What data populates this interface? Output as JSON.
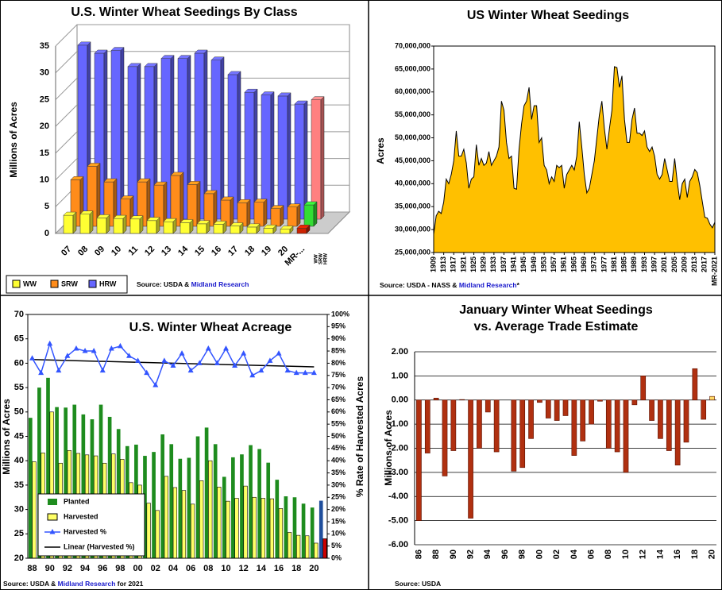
{
  "chart_data": [
    {
      "type": "bar3d",
      "title": "U.S. Winter Wheat Seedings By Class",
      "y_label": "Millions of Acres",
      "source": [
        "Source: USDA & ",
        "Midland Research"
      ],
      "categories": [
        "07",
        "08",
        "09",
        "10",
        "11",
        "12",
        "13",
        "14",
        "15",
        "16",
        "17",
        "18",
        "19",
        "20",
        "MR-..."
      ],
      "series": [
        {
          "name": "WW",
          "color": "#ffff33",
          "highlight_color": "#cc2200",
          "values": [
            3.4,
            3.6,
            2.9,
            2.8,
            2.7,
            2.4,
            2.2,
            2.0,
            1.8,
            1.7,
            1.4,
            1.2,
            1.0,
            0.8,
            1.0
          ]
        },
        {
          "name": "SRW",
          "color": "#ff8c1a",
          "highlight_color": "#33dd33",
          "values": [
            8.7,
            11.2,
            8.3,
            5.1,
            8.3,
            7.7,
            9.5,
            7.8,
            6.1,
            4.9,
            4.4,
            4.5,
            3.3,
            3.6,
            4.0
          ]
        },
        {
          "name": "HRW",
          "color": "#6666ff",
          "highlight_color": "#ff8080",
          "values": [
            32.5,
            31,
            31.5,
            28.5,
            28.5,
            30,
            30,
            31,
            29.7,
            27,
            23.7,
            23.2,
            23,
            21.5,
            22.3
          ]
        }
      ],
      "ylim": [
        0,
        35
      ],
      "yticks": [
        0,
        5,
        10,
        15,
        20,
        25,
        30,
        35
      ],
      "grid": true
    },
    {
      "type": "area",
      "title": "US Winter Wheat Seedings",
      "y_label": "Acres",
      "source": [
        "Source: USDA - NASS & ",
        "Midland Research",
        "*"
      ],
      "x_start": 1909,
      "color": "#ffc000",
      "values": [
        29,
        33,
        34,
        33.5,
        36,
        41,
        40,
        42,
        45,
        51.5,
        46,
        46,
        47.5,
        44.5,
        39,
        41,
        41.5,
        48.5,
        44,
        45.5,
        44,
        44.5,
        47,
        44,
        45,
        46,
        48,
        58,
        56,
        49,
        45.5,
        46,
        39,
        38.8,
        47.5,
        53,
        57,
        58,
        61,
        54,
        57,
        57,
        49,
        50,
        44,
        43,
        40,
        41.5,
        40.5,
        44,
        43.5,
        44,
        39,
        42,
        43,
        44,
        43,
        46,
        53.5,
        48,
        42,
        38,
        39,
        42,
        45,
        50,
        55,
        58,
        52,
        47.5,
        52,
        56,
        65.5,
        65.3,
        61,
        63.5,
        54,
        49,
        49,
        54,
        56.5,
        51,
        51,
        50.5,
        51.5,
        48,
        47,
        48,
        46,
        42,
        41,
        42,
        45.5,
        43,
        40.5,
        40.5,
        45.5,
        40.5,
        36.5,
        40,
        41,
        37,
        40.5,
        41.5,
        43.1,
        42.4,
        39.6,
        36.1,
        32.7,
        32.5,
        31.2,
        30.4,
        31.6
      ],
      "value_scale": 1000000,
      "xlim": [
        1909,
        2021
      ],
      "xticks": [
        1909,
        1913,
        1917,
        1921,
        1925,
        1929,
        1933,
        1937,
        1941,
        1945,
        1949,
        1953,
        1957,
        1961,
        1965,
        1969,
        1973,
        1977,
        1981,
        1985,
        1989,
        1993,
        1997,
        2001,
        2005,
        2009,
        2013,
        2017,
        {
          "value": 2021,
          "label": "MR-2021"
        }
      ],
      "ylim": [
        25000000,
        70000000
      ],
      "yticks": [
        {
          "value": 25000000,
          "label": "25,000,000"
        },
        {
          "value": 30000000,
          "label": "30,000,000"
        },
        {
          "value": 35000000,
          "label": "35,000,000"
        },
        {
          "value": 40000000,
          "label": "40,000,000"
        },
        {
          "value": 45000000,
          "label": "45,000,000"
        },
        {
          "value": 50000000,
          "label": "50,000,000"
        },
        {
          "value": 55000000,
          "label": "55,000,000"
        },
        {
          "value": 60000000,
          "label": "60,000,000"
        },
        {
          "value": 65000000,
          "label": "65,000,000"
        },
        {
          "value": 70000000,
          "label": "70,000,000"
        }
      ]
    },
    {
      "type": "combo",
      "title": "U.S. Winter Wheat Acreage",
      "y_label": "Millions of Acres",
      "y2_label": "% Rate of Harvested Acres",
      "source": [
        "Source: USDA & ",
        "Midland Research",
        " for 2021"
      ],
      "categories": [
        "88",
        null,
        "90",
        null,
        "92",
        null,
        "94",
        null,
        "96",
        null,
        "98",
        null,
        "00",
        null,
        "02",
        null,
        "04",
        null,
        "06",
        null,
        "08",
        null,
        "10",
        null,
        "12",
        null,
        "14",
        null,
        "16",
        null,
        "18",
        null,
        "20",
        null
      ],
      "series": [
        {
          "name": "Planted",
          "color": "#1e8c1e",
          "highlight_color": "#1f4e9c",
          "values": [
            48.8,
            55,
            57,
            51,
            50.9,
            51.5,
            49.5,
            48.5,
            51.5,
            49,
            46.5,
            43,
            43.3,
            41,
            41.8,
            45.4,
            43.4,
            40.4,
            40.6,
            45,
            46.8,
            43.4,
            36.7,
            40.7,
            41.3,
            43.2,
            42.4,
            39.6,
            36.1,
            32.7,
            32.5,
            31.2,
            30.4,
            31.8
          ]
        },
        {
          "name": "Harvested",
          "color": "#ffff66",
          "highlight_color": "#cc0000",
          "values": [
            39.8,
            41.6,
            50,
            39.5,
            42.1,
            41.5,
            41.2,
            41,
            39.5,
            41.4,
            40.3,
            35.5,
            35,
            31.3,
            29.8,
            36.8,
            34.5,
            33.9,
            31.1,
            35.9,
            40,
            34.6,
            31.7,
            32.3,
            34.8,
            32.5,
            32.3,
            32.2,
            30.2,
            25.3,
            24.7,
            24.6,
            23.1,
            24
          ]
        },
        {
          "name": "Harvested %",
          "color": "#3355ff",
          "axis": "y2",
          "values": [
            82,
            76,
            88,
            77,
            83,
            86,
            85,
            85,
            77,
            86,
            87,
            83,
            81,
            76,
            71,
            81,
            79,
            84,
            77,
            80,
            86,
            80,
            86,
            79,
            84,
            75,
            77,
            81,
            84,
            77,
            76,
            76,
            76,
            null
          ]
        }
      ],
      "trend": {
        "name": "Linear (Harvested %)",
        "color": "#000000",
        "axis": "y2",
        "start": 81.5,
        "end": 78.5
      },
      "ylim": [
        20,
        70
      ],
      "yticks": [
        20,
        25,
        30,
        35,
        40,
        45,
        50,
        55,
        60,
        65,
        70
      ],
      "y2lim": [
        0,
        100
      ],
      "y2ticks": [
        {
          "value": 0,
          "label": "0%"
        },
        {
          "value": 5,
          "label": "5%"
        },
        {
          "value": 10,
          "label": "10%"
        },
        {
          "value": 15,
          "label": "15%"
        },
        {
          "value": 20,
          "label": "20%"
        },
        {
          "value": 25,
          "label": "25%"
        },
        {
          "value": 30,
          "label": "30%"
        },
        {
          "value": 35,
          "label": "35%"
        },
        {
          "value": 40,
          "label": "40%"
        },
        {
          "value": 45,
          "label": "45%"
        },
        {
          "value": 50,
          "label": "50%"
        },
        {
          "value": 55,
          "label": "55%"
        },
        {
          "value": 60,
          "label": "60%"
        },
        {
          "value": 65,
          "label": "65%"
        },
        {
          "value": 70,
          "label": "70%"
        },
        {
          "value": 75,
          "label": "75%"
        },
        {
          "value": 80,
          "label": "80%"
        },
        {
          "value": 85,
          "label": "85%"
        },
        {
          "value": 90,
          "label": "90%"
        },
        {
          "value": 95,
          "label": "95%"
        },
        {
          "value": 100,
          "label": "100%"
        }
      ]
    },
    {
      "type": "bar",
      "title": [
        "January Winter Wheat Seedings",
        "vs. Average Trade Estimate"
      ],
      "y_label": "Millions of Acres",
      "source": [
        "Source: USDA"
      ],
      "categories": [
        "86",
        null,
        "88",
        null,
        "90",
        null,
        "92",
        null,
        "94",
        null,
        "96",
        null,
        "98",
        null,
        "00",
        null,
        "02",
        null,
        "04",
        null,
        "06",
        null,
        "08",
        null,
        "10",
        null,
        "12",
        null,
        "14",
        null,
        "16",
        null,
        "18",
        null,
        "20"
      ],
      "values": [
        -5,
        -2.2,
        0.08,
        -3.15,
        -2.1,
        0.02,
        -4.9,
        -2,
        -0.5,
        -2.15,
        0,
        -2.95,
        -2.8,
        -1.6,
        -0.1,
        -0.75,
        -0.85,
        -0.65,
        -2.3,
        -1.7,
        -1,
        -0.05,
        -2,
        -2.15,
        -3,
        -0.2,
        1,
        -0.85,
        -1.6,
        -2.1,
        -2.7,
        -1.75,
        1.3,
        -0.8,
        0.15
      ],
      "color": "#b03010",
      "highlight_color": "#ffd966",
      "ylim": [
        -6,
        2
      ],
      "grid": true,
      "yticks": [
        {
          "value": 2,
          "label": "2.00"
        },
        {
          "value": 1,
          "label": "1.00"
        },
        {
          "value": 0,
          "label": "0.00"
        },
        {
          "value": -1,
          "label": "-1.00"
        },
        {
          "value": -2,
          "label": "-2.00"
        },
        {
          "value": -3,
          "label": "-3.00"
        },
        {
          "value": -4,
          "label": "-4.00"
        },
        {
          "value": -5,
          "label": "-5.00"
        },
        {
          "value": -6,
          "label": "-6.00"
        }
      ]
    }
  ]
}
